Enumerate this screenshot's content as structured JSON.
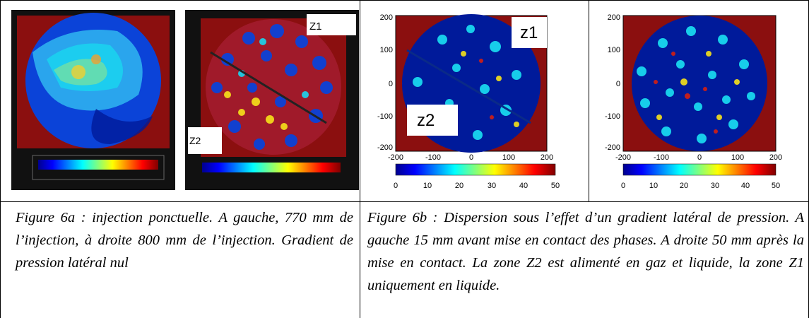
{
  "figures": {
    "fig6a": {
      "caption": "Figure 6a : injection ponctuelle. A gauche, 770 mm de l’injection, à droite 800 mm de l’injection. Gradient de pression latéral nul",
      "right_panel_labels": [
        "Z1",
        "Z2"
      ]
    },
    "fig6b": {
      "caption": "Figure 6b : Dispersion sous l’effet d’un gradient latéral de pression. A gauche 15 mm avant mise en contact des phases. A droite 50 mm après la mise en contact. La zone Z2 est alimenté en gaz et liquide, la zone Z1 uniquement en liquide.",
      "left_panel_labels": [
        "z1",
        "z2"
      ]
    }
  },
  "axes": {
    "x_ticks": [
      "-200",
      "-100",
      "0",
      "100",
      "200"
    ],
    "y_ticks": [
      "200",
      "100",
      "0",
      "-100",
      "-200"
    ],
    "colorbar_ticks": [
      "0",
      "10",
      "20",
      "30",
      "40",
      "50"
    ]
  },
  "colors": {
    "background_red": "#8b0f0f",
    "dark_blue": "#001a9a",
    "mid_blue": "#0a4fe0",
    "cyan": "#19d7ef",
    "yellow": "#f7e21a",
    "red": "#d31f12"
  }
}
